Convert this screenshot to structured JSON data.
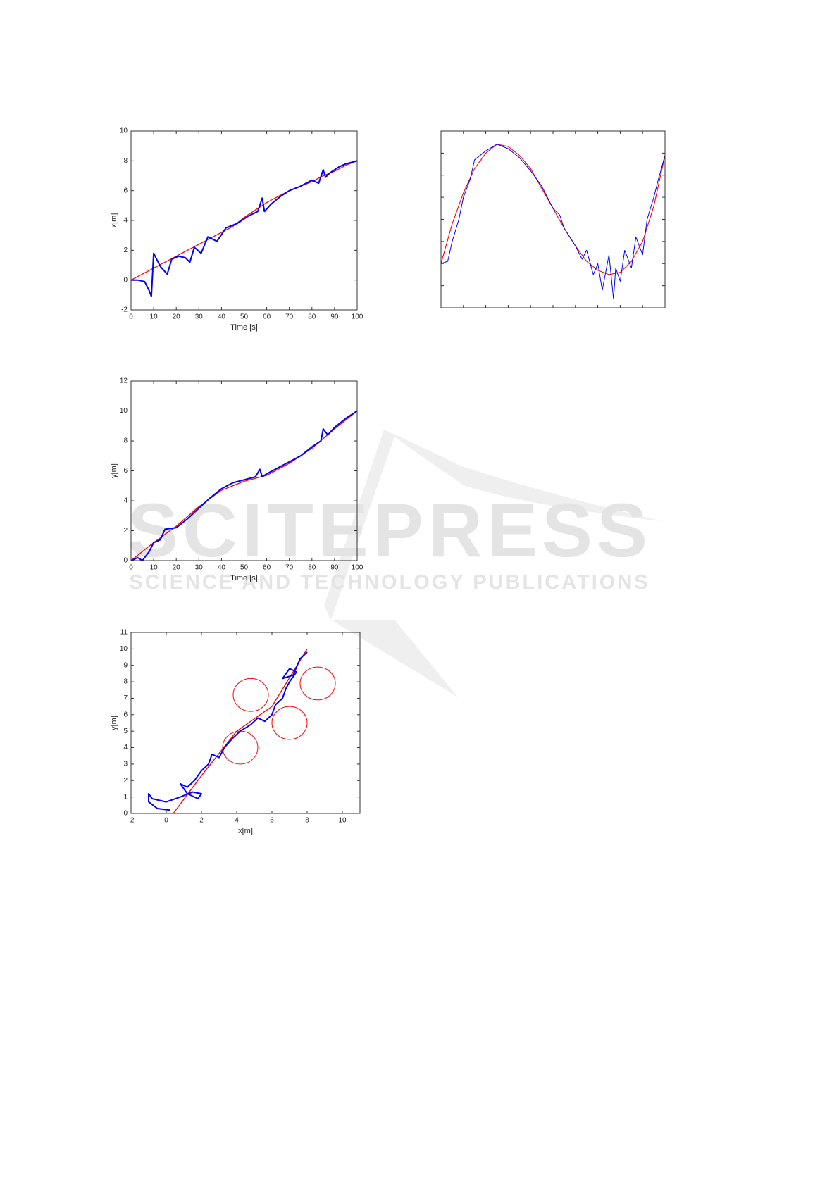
{
  "watermark": {
    "title": "SCITEPRESS",
    "subtitle": "SCIENCE AND TECHNOLOGY PUBLICATIONS"
  },
  "chart_data": [
    {
      "type": "line",
      "xlabel": "Time [s]",
      "ylabel": "x[m]",
      "xlim": [
        0,
        100
      ],
      "xticks": [
        0,
        10,
        20,
        30,
        40,
        50,
        60,
        70,
        80,
        90,
        100
      ],
      "ylim": [
        -2,
        10
      ],
      "yticks": [
        -2,
        0,
        2,
        4,
        6,
        8,
        10
      ],
      "series": [
        {
          "color": "#ff0000",
          "width": 1.3,
          "x": [
            0,
            5,
            10,
            15,
            20,
            25,
            30,
            35,
            40,
            45,
            50,
            55,
            60,
            65,
            70,
            75,
            80,
            85,
            90,
            95,
            100
          ],
          "values": [
            0,
            0.4,
            0.8,
            1.2,
            1.6,
            2.0,
            2.4,
            2.8,
            3.2,
            3.6,
            4.2,
            4.7,
            5.2,
            5.6,
            6.0,
            6.3,
            6.6,
            7.0,
            7.3,
            7.7,
            8.0
          ]
        },
        {
          "color": "#0000ff",
          "width": 2,
          "x": [
            0,
            3,
            6,
            8,
            9,
            10,
            11,
            13,
            16,
            18,
            21,
            24,
            26,
            28,
            31,
            34,
            38,
            42,
            47,
            52,
            56,
            58,
            59,
            62,
            66,
            70,
            75,
            80,
            83,
            85,
            86,
            88,
            92,
            95,
            100
          ],
          "values": [
            0,
            0,
            -0.1,
            -0.7,
            -1.1,
            1.8,
            1.5,
            0.9,
            0.4,
            1.4,
            1.6,
            1.5,
            1.2,
            2.2,
            1.8,
            2.9,
            2.6,
            3.5,
            3.8,
            4.3,
            4.6,
            5.5,
            4.6,
            5.1,
            5.6,
            6.0,
            6.3,
            6.7,
            6.5,
            7.4,
            6.9,
            7.2,
            7.6,
            7.8,
            8.0
          ]
        }
      ]
    },
    {
      "type": "line",
      "tick_labels": false,
      "xlim": [
        0,
        10
      ],
      "xticks": [
        0,
        1,
        2,
        3,
        4,
        5,
        6,
        7,
        8,
        9,
        10
      ],
      "ylim": [
        0,
        8
      ],
      "yticks": [
        0,
        1,
        2,
        3,
        4,
        5,
        6,
        7,
        8
      ],
      "series": [
        {
          "color": "#ff0000",
          "width": 1.1,
          "x": [
            0,
            0.5,
            1,
            1.5,
            2,
            2.5,
            3,
            3.5,
            4,
            4.5,
            5,
            5.5,
            6,
            6.5,
            7,
            7.5,
            8,
            8.5,
            9,
            9.5,
            10
          ],
          "values": [
            2.0,
            3.8,
            5.2,
            6.3,
            7.0,
            7.4,
            7.3,
            6.9,
            6.3,
            5.4,
            4.5,
            3.6,
            2.8,
            2.1,
            1.7,
            1.5,
            1.6,
            2.1,
            3.0,
            4.6,
            6.9
          ]
        },
        {
          "color": "#0000ff",
          "width": 1,
          "x": [
            0,
            0.3,
            0.5,
            0.8,
            1,
            1.3,
            1.5,
            2,
            2.5,
            3,
            3.5,
            4,
            4.5,
            5,
            5.3,
            5.5,
            6,
            6.3,
            6.5,
            6.8,
            7,
            7.2,
            7.5,
            7.7,
            7.8,
            8,
            8.2,
            8.5,
            8.7,
            9,
            9.2,
            9.5,
            9.7,
            10
          ],
          "values": [
            2.0,
            2.1,
            3.0,
            4.0,
            5.0,
            5.8,
            6.7,
            7.1,
            7.4,
            7.2,
            6.8,
            6.2,
            5.5,
            4.5,
            4.2,
            3.6,
            2.8,
            2.2,
            2.6,
            1.5,
            2.0,
            0.8,
            2.4,
            0.4,
            1.8,
            1.2,
            2.6,
            1.8,
            3.2,
            2.4,
            4.0,
            5.0,
            5.8,
            6.9
          ]
        }
      ]
    },
    {
      "type": "line",
      "xlabel": "Time [s]",
      "ylabel": "y[m]",
      "xlim": [
        0,
        100
      ],
      "xticks": [
        0,
        10,
        20,
        30,
        40,
        50,
        60,
        70,
        80,
        90,
        100
      ],
      "ylim": [
        0,
        12
      ],
      "yticks": [
        0,
        2,
        4,
        6,
        8,
        10,
        12
      ],
      "series": [
        {
          "color": "#ff0000",
          "width": 1.3,
          "x": [
            0,
            10,
            20,
            30,
            40,
            50,
            60,
            70,
            80,
            90,
            100
          ],
          "values": [
            0,
            1.2,
            2.3,
            3.6,
            4.7,
            5.3,
            5.7,
            6.5,
            7.5,
            8.8,
            10
          ]
        },
        {
          "color": "#0000ff",
          "width": 2,
          "x": [
            0,
            3,
            5,
            8,
            10,
            13,
            15,
            20,
            25,
            30,
            35,
            40,
            45,
            50,
            55,
            57,
            58,
            60,
            65,
            70,
            75,
            80,
            84,
            85,
            87,
            90,
            95,
            100
          ],
          "values": [
            0,
            0.2,
            0,
            0.6,
            1.2,
            1.4,
            2.1,
            2.2,
            2.8,
            3.5,
            4.2,
            4.8,
            5.2,
            5.4,
            5.6,
            6.1,
            5.6,
            5.8,
            6.2,
            6.6,
            7.0,
            7.6,
            8.0,
            8.8,
            8.4,
            8.9,
            9.5,
            10
          ]
        }
      ]
    },
    {
      "type": "line",
      "xlabel": "x[m]",
      "ylabel": "y[m]",
      "xlim": [
        -2,
        11
      ],
      "xticks": [
        -2,
        0,
        2,
        4,
        6,
        8,
        10
      ],
      "ylim": [
        0,
        11
      ],
      "yticks": [
        0,
        1,
        2,
        3,
        4,
        5,
        6,
        7,
        8,
        9,
        10,
        11
      ],
      "obstacles": {
        "color": "#ff0000",
        "x": [
          4.8,
          8.6,
          7,
          4.2
        ],
        "y": [
          7.2,
          7.9,
          5.5,
          4
        ],
        "r": [
          1,
          1,
          1,
          1
        ]
      },
      "series": [
        {
          "color": "#ff0000",
          "width": 1.3,
          "x": [
            0.4,
            2,
            4,
            6,
            8
          ],
          "values": [
            0,
            2.3,
            5,
            6.5,
            10
          ]
        },
        {
          "color": "#0000ff",
          "width": 2,
          "x": [
            0.2,
            -0.5,
            -1,
            -1,
            -0.8,
            0,
            0.8,
            1.5,
            2,
            1.8,
            1.2,
            0.8,
            1.2,
            1.6,
            2,
            2.4,
            2.6,
            3,
            3.3,
            3.8,
            4.2,
            4.8,
            5.2,
            5.6,
            6,
            6.2,
            6.6,
            6.8,
            7,
            7.4,
            7,
            6.6,
            7.2,
            7.6,
            8
          ],
          "values": [
            0.2,
            0.3,
            0.7,
            1.2,
            0.9,
            0.7,
            1.0,
            1.3,
            1.2,
            0.9,
            1.2,
            1.8,
            1.6,
            2.0,
            2.6,
            3.0,
            3.6,
            3.4,
            4.0,
            4.6,
            5.0,
            5.4,
            5.8,
            5.6,
            6.0,
            6.6,
            7.0,
            7.6,
            8.0,
            8.6,
            8.8,
            8.2,
            8.4,
            9.4,
            9.8
          ]
        }
      ]
    }
  ]
}
